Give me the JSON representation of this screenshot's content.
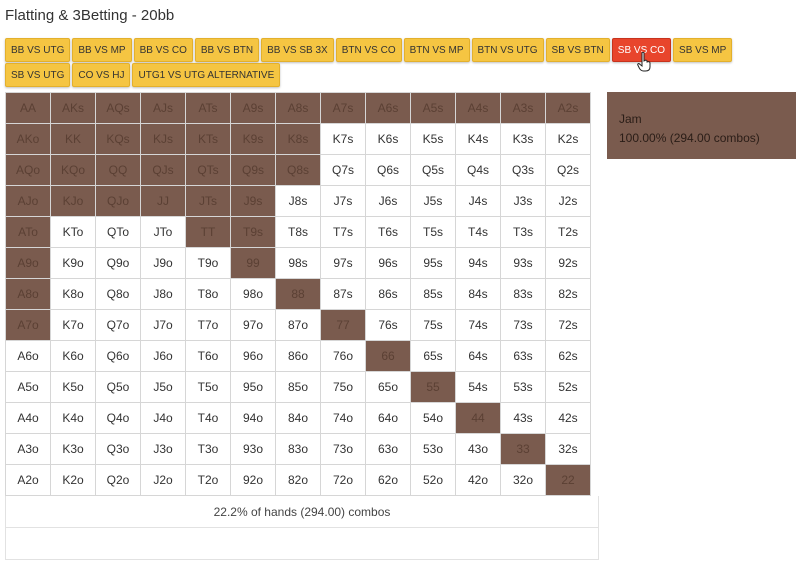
{
  "page": {
    "title": "Flatting & 3Betting - 20bb"
  },
  "tabs": [
    {
      "label": "BB VS UTG"
    },
    {
      "label": "BB VS MP"
    },
    {
      "label": "BB VS CO"
    },
    {
      "label": "BB VS BTN"
    },
    {
      "label": "BB VS SB 3X"
    },
    {
      "label": "BTN VS CO"
    },
    {
      "label": "BTN VS MP"
    },
    {
      "label": "BTN VS UTG"
    },
    {
      "label": "SB VS BTN"
    },
    {
      "label": "SB VS CO",
      "active": true
    },
    {
      "label": "SB VS MP"
    },
    {
      "label": "SB VS UTG"
    },
    {
      "label": "CO VS HJ"
    },
    {
      "label": "UTG1 VS UTG ALTERNATIVE"
    }
  ],
  "grid": {
    "rows": [
      [
        "AA",
        "AKs",
        "AQs",
        "AJs",
        "ATs",
        "A9s",
        "A8s",
        "A7s",
        "A6s",
        "A5s",
        "A4s",
        "A3s",
        "A2s"
      ],
      [
        "AKo",
        "KK",
        "KQs",
        "KJs",
        "KTs",
        "K9s",
        "K8s",
        "K7s",
        "K6s",
        "K5s",
        "K4s",
        "K3s",
        "K2s"
      ],
      [
        "AQo",
        "KQo",
        "QQ",
        "QJs",
        "QTs",
        "Q9s",
        "Q8s",
        "Q7s",
        "Q6s",
        "Q5s",
        "Q4s",
        "Q3s",
        "Q2s"
      ],
      [
        "AJo",
        "KJo",
        "QJo",
        "JJ",
        "JTs",
        "J9s",
        "J8s",
        "J7s",
        "J6s",
        "J5s",
        "J4s",
        "J3s",
        "J2s"
      ],
      [
        "ATo",
        "KTo",
        "QTo",
        "JTo",
        "TT",
        "T9s",
        "T8s",
        "T7s",
        "T6s",
        "T5s",
        "T4s",
        "T3s",
        "T2s"
      ],
      [
        "A9o",
        "K9o",
        "Q9o",
        "J9o",
        "T9o",
        "99",
        "98s",
        "97s",
        "96s",
        "95s",
        "94s",
        "93s",
        "92s"
      ],
      [
        "A8o",
        "K8o",
        "Q8o",
        "J8o",
        "T8o",
        "98o",
        "88",
        "87s",
        "86s",
        "85s",
        "84s",
        "83s",
        "82s"
      ],
      [
        "A7o",
        "K7o",
        "Q7o",
        "J7o",
        "T7o",
        "97o",
        "87o",
        "77",
        "76s",
        "75s",
        "74s",
        "73s",
        "72s"
      ],
      [
        "A6o",
        "K6o",
        "Q6o",
        "J6o",
        "T6o",
        "96o",
        "86o",
        "76o",
        "66",
        "65s",
        "64s",
        "63s",
        "62s"
      ],
      [
        "A5o",
        "K5o",
        "Q5o",
        "J5o",
        "T5o",
        "95o",
        "85o",
        "75o",
        "65o",
        "55",
        "54s",
        "53s",
        "52s"
      ],
      [
        "A4o",
        "K4o",
        "Q4o",
        "J4o",
        "T4o",
        "94o",
        "84o",
        "74o",
        "64o",
        "54o",
        "44",
        "43s",
        "42s"
      ],
      [
        "A3o",
        "K3o",
        "Q3o",
        "J3o",
        "T3o",
        "93o",
        "83o",
        "73o",
        "63o",
        "53o",
        "43o",
        "33",
        "32s"
      ],
      [
        "A2o",
        "K2o",
        "Q2o",
        "J2o",
        "T2o",
        "92o",
        "82o",
        "72o",
        "62o",
        "52o",
        "42o",
        "32o",
        "22"
      ]
    ],
    "jam": [
      "AA",
      "AKs",
      "AQs",
      "AJs",
      "ATs",
      "A9s",
      "A8s",
      "A7s",
      "A6s",
      "A5s",
      "A4s",
      "A3s",
      "A2s",
      "AKo",
      "KK",
      "KQs",
      "KJs",
      "KTs",
      "K9s",
      "K8s",
      "AQo",
      "KQo",
      "QQ",
      "QJs",
      "QTs",
      "Q9s",
      "Q8s",
      "AJo",
      "KJo",
      "QJo",
      "JJ",
      "JTs",
      "J9s",
      "ATo",
      "TT",
      "T9s",
      "A9o",
      "99",
      "A8o",
      "88",
      "A7o",
      "77",
      "66",
      "55",
      "44",
      "33",
      "22"
    ],
    "jam_color": "#7a5b4e"
  },
  "summary": {
    "text": "22.2% of hands (294.00) combos"
  },
  "legend": {
    "action": "Jam",
    "detail": "100.00% (294.00 combos)"
  },
  "colors": {
    "tab": "#f5c542",
    "tab_active": "#e8452c",
    "jam": "#7a5b4e"
  }
}
